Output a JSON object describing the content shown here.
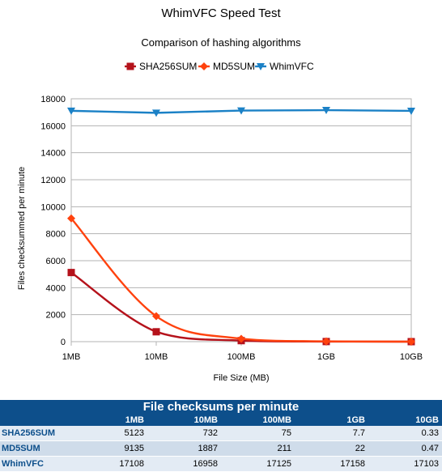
{
  "chart_data": {
    "type": "line",
    "title": "WhimVFC Speed Test",
    "subtitle": "Comparison of hashing algorithms",
    "xlabel": "File Size (MB)",
    "ylabel": "Files checksummed per minute",
    "categories": [
      "1MB",
      "10MB",
      "100MB",
      "1GB",
      "10GB"
    ],
    "ylim": [
      0,
      18000
    ],
    "yticks": [
      0,
      2000,
      4000,
      6000,
      8000,
      10000,
      12000,
      14000,
      16000,
      18000
    ],
    "grid": "horizontal",
    "legend_position": "top",
    "series": [
      {
        "name": "SHA256SUM",
        "values": [
          5123,
          732,
          75,
          7.7,
          0.33
        ],
        "color": "#b5121b",
        "marker": "square"
      },
      {
        "name": "MD5SUM",
        "values": [
          9135,
          1887,
          211,
          22,
          0.47
        ],
        "color": "#ff420e",
        "marker": "diamond"
      },
      {
        "name": "WhimVFC",
        "values": [
          17108,
          16958,
          17125,
          17158,
          17103
        ],
        "color": "#1b81c6",
        "marker": "triangle-down"
      }
    ]
  },
  "table": {
    "caption": "File checksums per minute",
    "columns": [
      "",
      "1MB",
      "10MB",
      "100MB",
      "1GB",
      "10GB"
    ],
    "rows": [
      {
        "label": "SHA256SUM",
        "values": [
          "5123",
          "732",
          "75",
          "7.7",
          "0.33"
        ]
      },
      {
        "label": "MD5SUM",
        "values": [
          "9135",
          "1887",
          "211",
          "22",
          "0.47"
        ]
      },
      {
        "label": "WhimVFC",
        "values": [
          "17108",
          "16958",
          "17125",
          "17158",
          "17103"
        ]
      }
    ]
  }
}
